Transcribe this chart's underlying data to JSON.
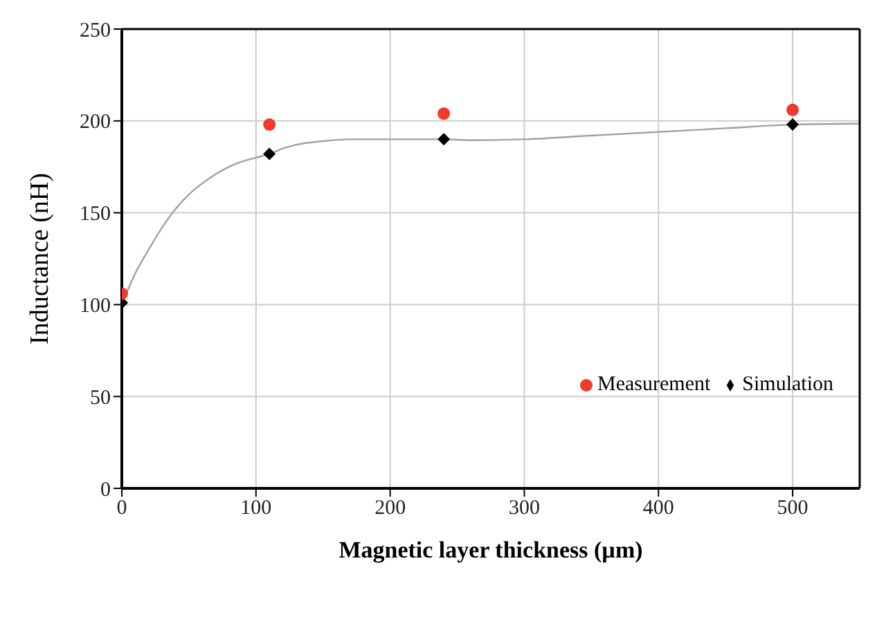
{
  "chart_data": {
    "type": "scatter",
    "xlabel": "Magnetic layer thickness (µm)",
    "ylabel": "Inductance (nH)",
    "xlim": [
      0,
      550
    ],
    "xticks": [
      0,
      100,
      200,
      300,
      400,
      500
    ],
    "ylim": [
      0,
      250
    ],
    "yticks": [
      0,
      50,
      100,
      150,
      200,
      250
    ],
    "grid": true,
    "legend": "right",
    "series": [
      {
        "type": "line",
        "color": "#a0a0a0",
        "marker": "none",
        "x": [
          0,
          10,
          20,
          30,
          40,
          50,
          60,
          70,
          80,
          90,
          100,
          110,
          120,
          130,
          150,
          170,
          200,
          240,
          260,
          300,
          350,
          400,
          450,
          500,
          550
        ],
        "values": [
          100,
          117,
          130,
          142,
          152,
          160,
          166,
          171,
          175,
          178,
          180,
          182,
          185,
          187,
          189,
          190,
          190,
          190,
          189.5,
          190,
          192,
          194,
          196,
          198,
          198.5
        ]
      },
      {
        "name": "Simulation",
        "color": "#000000",
        "marker": "diamond",
        "x": [
          0,
          110,
          240,
          500
        ],
        "values": [
          101,
          182,
          190,
          198
        ]
      },
      {
        "name": "Measurement",
        "color": "#f03a2a",
        "marker": "circle",
        "x": [
          0,
          110,
          240,
          500
        ],
        "values": [
          106,
          198,
          204,
          206
        ]
      }
    ]
  }
}
